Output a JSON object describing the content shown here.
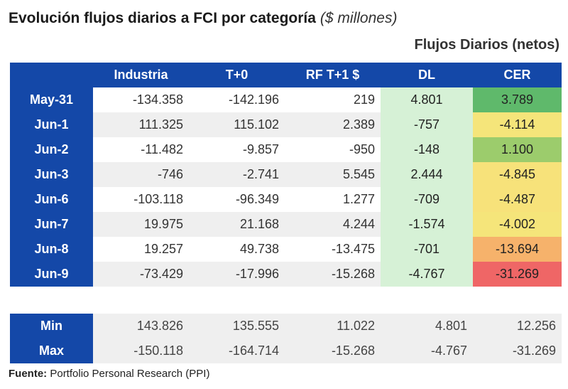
{
  "header": {
    "title": "Evolución flujos diarios a FCI por categoría",
    "unit": "($ millones)",
    "subtitle": "Flujos Diarios (netos)"
  },
  "table": {
    "columns": [
      "Industria",
      "T+0",
      "RF T+1 $",
      "DL",
      "CER"
    ],
    "rows": [
      {
        "label": "May-31",
        "values": [
          "-134.358",
          "-142.196",
          "219",
          "4.801",
          "3.789"
        ],
        "cer_color": "#5fb96b"
      },
      {
        "label": "Jun-1",
        "values": [
          "111.325",
          "115.102",
          "2.389",
          "-757",
          "-4.114"
        ],
        "cer_color": "#f5e57a"
      },
      {
        "label": "Jun-2",
        "values": [
          "-11.482",
          "-9.857",
          "-950",
          "-148",
          "1.100"
        ],
        "cer_color": "#9ccc6c"
      },
      {
        "label": "Jun-3",
        "values": [
          "-746",
          "-2.741",
          "5.545",
          "2.444",
          "-4.845"
        ],
        "cer_color": "#f7e27a"
      },
      {
        "label": "Jun-6",
        "values": [
          "-103.118",
          "-96.349",
          "1.277",
          "-709",
          "-4.487"
        ],
        "cer_color": "#f7e27a"
      },
      {
        "label": "Jun-7",
        "values": [
          "19.975",
          "21.168",
          "4.244",
          "-1.574",
          "-4.002"
        ],
        "cer_color": "#f5e57a"
      },
      {
        "label": "Jun-8",
        "values": [
          "19.257",
          "49.738",
          "-13.475",
          "-701",
          "-13.694"
        ],
        "cer_color": "#f6b26b"
      },
      {
        "label": "Jun-9",
        "values": [
          "-73.429",
          "-17.996",
          "-15.268",
          "-4.767",
          "-31.269"
        ],
        "cer_color": "#ef6666"
      }
    ]
  },
  "summary": [
    {
      "label": "Min",
      "values": [
        "143.826",
        "135.555",
        "11.022",
        "4.801",
        "12.256"
      ]
    },
    {
      "label": "Max",
      "values": [
        "-150.118",
        "-164.714",
        "-15.268",
        "-4.767",
        "-31.269"
      ]
    }
  ],
  "footer": {
    "label": "Fuente:",
    "text": "Portfolio Personal Research (PPI)"
  }
}
